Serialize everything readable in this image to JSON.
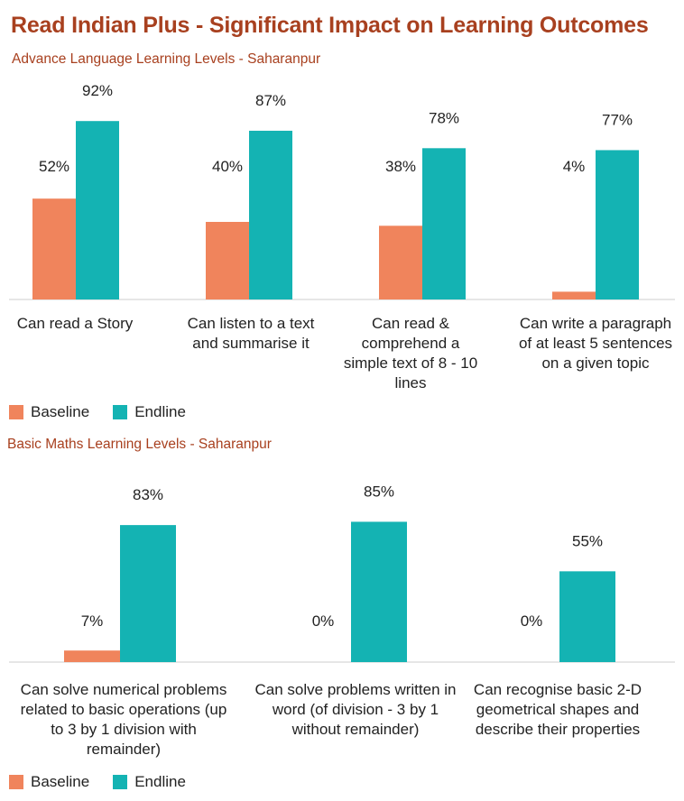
{
  "title": "Read Indian Plus - Significant Impact on Learning Outcomes",
  "legend": {
    "baseline": "Baseline",
    "endline": "Endline"
  },
  "colors": {
    "baseline": "#f0845c",
    "endline": "#14b3b3",
    "title": "#a8401f",
    "axis": "#cccccc"
  },
  "chart_data": [
    {
      "type": "bar",
      "title": "Advance Language Learning Levels - Saharanpur",
      "categories": [
        "Can read a Story",
        "Can listen to a text and summarise it",
        "Can read & comprehend a simple text of 8 - 10 lines",
        "Can write a paragraph of at least 5 sentences on a given topic"
      ],
      "series": [
        {
          "name": "Baseline",
          "values": [
            52,
            40,
            38,
            4
          ]
        },
        {
          "name": "Endline",
          "values": [
            92,
            87,
            78,
            77
          ]
        }
      ],
      "data_labels": {
        "Baseline": [
          "52%",
          "40%",
          "38%",
          "4%"
        ],
        "Endline": [
          "92%",
          "87%",
          "78%",
          "77%"
        ]
      },
      "legend_position": "bottom-left",
      "grid": false
    },
    {
      "type": "bar",
      "title": "Basic Maths Learning Levels - Saharanpur",
      "categories": [
        "Can solve numerical problems related to basic operations (up to 3 by 1 division with remainder)",
        "Can solve problems written in word (of division - 3 by 1 without remainder)",
        "Can recognise basic 2-D geometrical shapes and describe their properties"
      ],
      "series": [
        {
          "name": "Baseline",
          "values": [
            7,
            0,
            0
          ]
        },
        {
          "name": "Endline",
          "values": [
            83,
            85,
            55
          ]
        }
      ],
      "data_labels": {
        "Baseline": [
          "7%",
          "0%",
          "0%"
        ],
        "Endline": [
          "83%",
          "85%",
          "55%"
        ]
      },
      "legend_position": "bottom-left",
      "grid": false
    }
  ]
}
